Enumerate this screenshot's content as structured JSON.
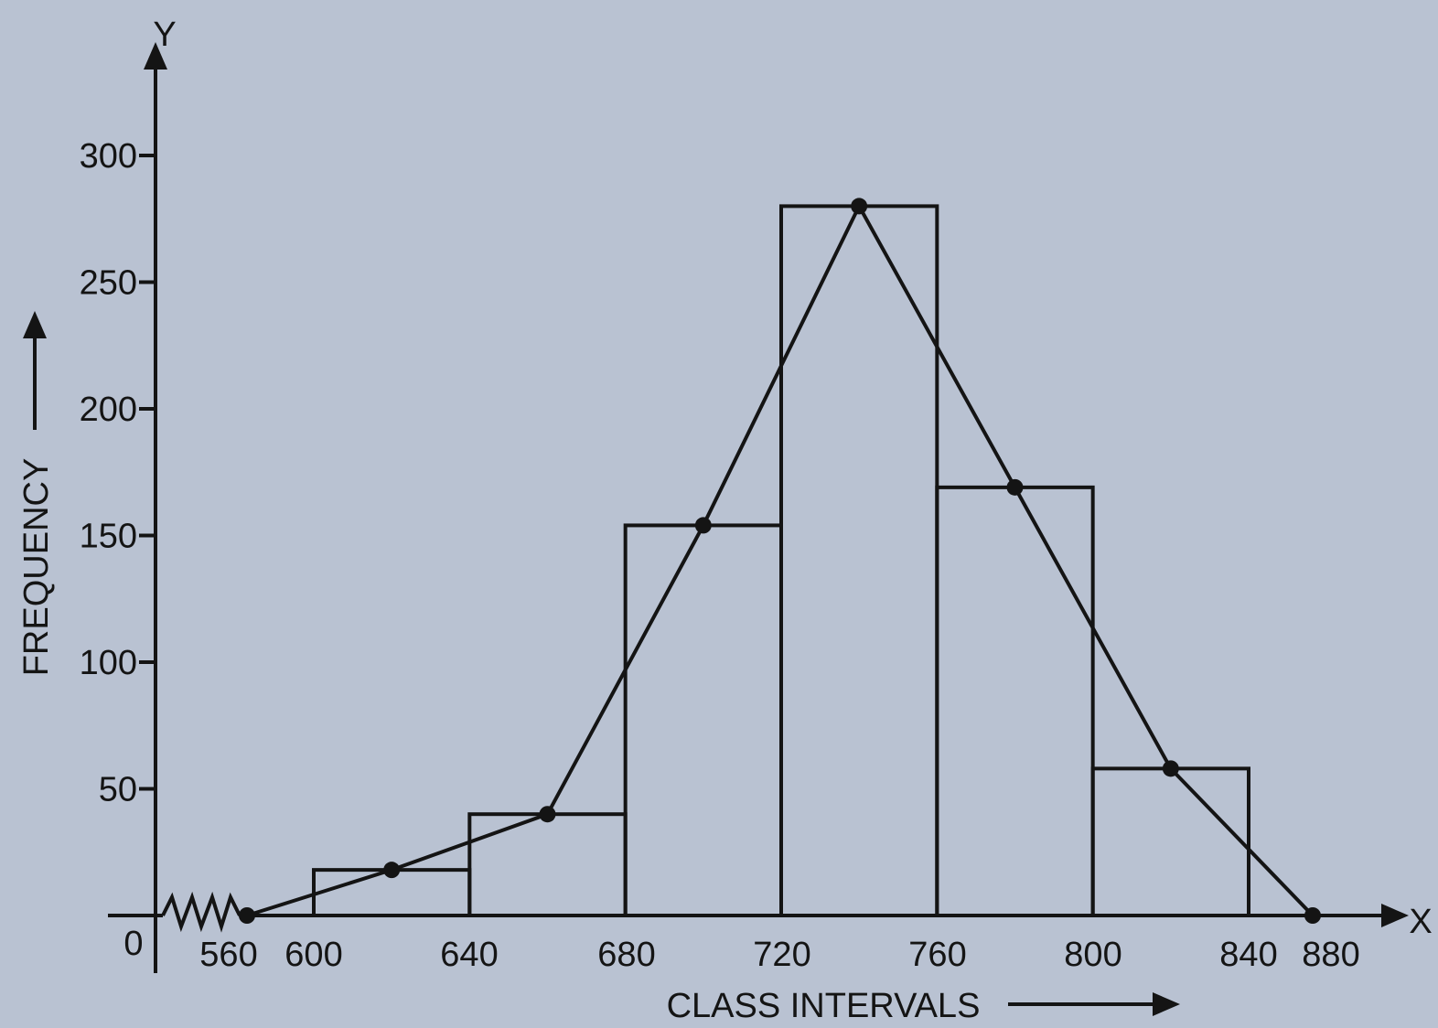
{
  "chart_data": {
    "type": "bar",
    "subtype": "histogram-with-frequency-polygon",
    "xlabel": "CLASS INTERVALS",
    "ylabel": "FREQUENCY",
    "x_axis_letter": "X",
    "y_axis_letter": "Y",
    "origin_label": "0",
    "x_tick_labels": [
      "560",
      "600",
      "640",
      "680",
      "720",
      "760",
      "800",
      "840",
      "880"
    ],
    "y_ticks": [
      50,
      100,
      150,
      200,
      250,
      300
    ],
    "x_axis_break": true,
    "bins": [
      {
        "from": 600,
        "to": 640,
        "value": 18
      },
      {
        "from": 640,
        "to": 680,
        "value": 40
      },
      {
        "from": 680,
        "to": 720,
        "value": 154
      },
      {
        "from": 720,
        "to": 760,
        "value": 280
      },
      {
        "from": 760,
        "to": 800,
        "value": 169
      },
      {
        "from": 800,
        "to": 840,
        "value": 58
      }
    ],
    "polygon": {
      "x": [
        580,
        620,
        660,
        700,
        740,
        780,
        820,
        860
      ],
      "y": [
        0,
        18,
        40,
        154,
        280,
        169,
        58,
        0
      ]
    },
    "ylim": [
      0,
      300
    ],
    "xlim": [
      560,
      880
    ],
    "grid": false,
    "colors": {
      "background": "#b9c2d2",
      "ink": "#141414"
    }
  }
}
